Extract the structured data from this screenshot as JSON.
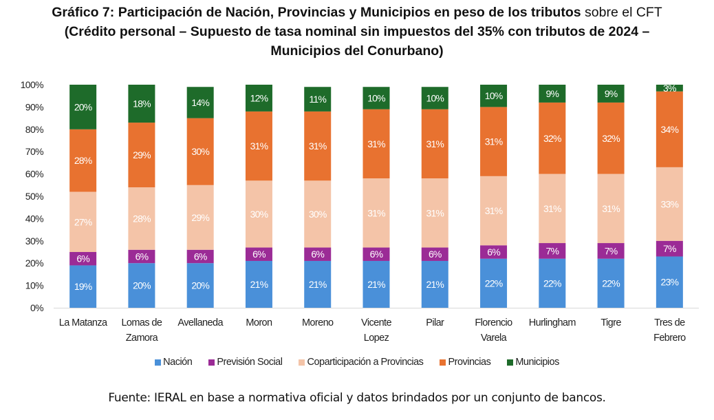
{
  "title": {
    "bold_part": "Gráfico 7: Participación de Nación, Provincias y Municipios en peso de los tributos",
    "normal_part": " sobre el CFT",
    "line2": "(Crédito personal – Supuesto de tasa nominal sin impuestos del 35% con tributos de 2024 –",
    "line3": "Municipios del Conurbano)"
  },
  "source": "Fuente: IERAL en base a normativa oficial y datos brindados por un conjunto de bancos.",
  "chart_data": {
    "type": "bar",
    "stacked": true,
    "title": "Gráfico 7: Participación de Nación, Provincias y Municipios en peso de los tributos sobre el CFT (Crédito personal – Supuesto de tasa nominal sin impuestos del 35% con tributos de 2024 – Municipios del Conurbano)",
    "xlabel": "",
    "ylabel": "",
    "ylim": [
      0,
      100
    ],
    "yticks": [
      "0%",
      "10%",
      "20%",
      "30%",
      "40%",
      "50%",
      "60%",
      "70%",
      "80%",
      "90%",
      "100%"
    ],
    "grid": false,
    "legend_position": "bottom",
    "categories": [
      [
        "La Matanza"
      ],
      [
        "Lomas de",
        "Zamora"
      ],
      [
        "Avellaneda"
      ],
      [
        "Moron"
      ],
      [
        "Moreno"
      ],
      [
        "Vicente",
        "Lopez"
      ],
      [
        "Pilar"
      ],
      [
        "Florencio",
        "Varela"
      ],
      [
        "Hurlingham"
      ],
      [
        "Tigre"
      ],
      [
        "Tres de",
        "Febrero"
      ]
    ],
    "series": [
      {
        "name": "Nación",
        "color": "#4a90d9",
        "values": [
          19,
          20,
          20,
          21,
          21,
          21,
          21,
          22,
          22,
          22,
          23
        ]
      },
      {
        "name": "Previsión Social",
        "color": "#9b2b96",
        "values": [
          6,
          6,
          6,
          6,
          6,
          6,
          6,
          6,
          7,
          7,
          7
        ]
      },
      {
        "name": "Coparticipación a Provincias",
        "color": "#f4c4a8",
        "values": [
          27,
          28,
          29,
          30,
          30,
          31,
          31,
          31,
          31,
          31,
          33
        ]
      },
      {
        "name": "Provincias",
        "color": "#e87230",
        "values": [
          28,
          29,
          30,
          31,
          31,
          31,
          31,
          31,
          32,
          32,
          34
        ]
      },
      {
        "name": "Municipios",
        "color": "#1e6b2a",
        "values": [
          20,
          18,
          14,
          12,
          11,
          10,
          10,
          10,
          9,
          9,
          3
        ]
      }
    ],
    "value_format": "{v}%"
  }
}
